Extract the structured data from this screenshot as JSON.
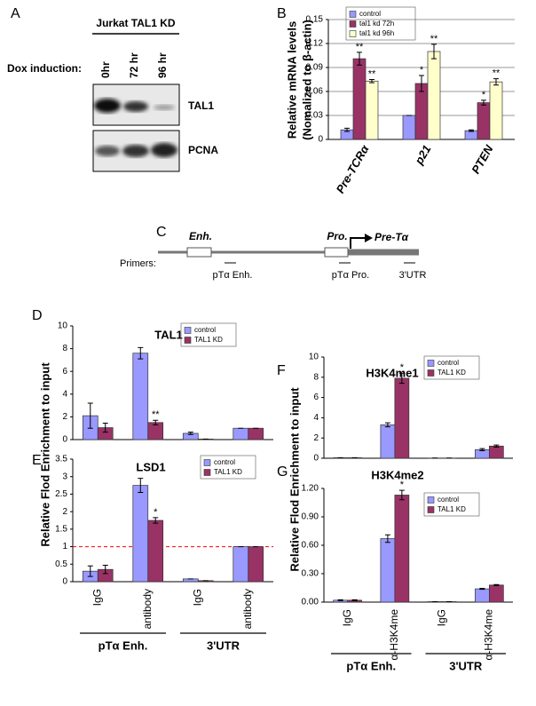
{
  "blot": {
    "label": "A",
    "title": "Jurkat TAL1 KD",
    "row_label": "Dox induction:",
    "lanes": [
      "0hr",
      "72 hr",
      "96 hr"
    ],
    "bands": [
      "TAL1",
      "PCNA"
    ]
  },
  "diagram": {
    "label": "C",
    "elements": [
      "Enh.",
      "Pro.",
      "Pre-Tα"
    ],
    "primers_label": "Primers:",
    "primers": [
      "pTα Enh.",
      "pTα Pro.",
      "3'UTR"
    ]
  },
  "chart_data": [
    {
      "type": "bar",
      "label": "B",
      "y_label": [
        "Relative mRNA levels",
        "(Nomalized to β-actin)"
      ],
      "categories": [
        "Pre-TCRα",
        "p21",
        "PTEN"
      ],
      "series": [
        {
          "name": "control",
          "color": "#9999ff",
          "values": [
            0.012,
            0.03,
            0.011
          ],
          "errors": [
            0.002,
            0,
            0.001
          ],
          "stars": [
            null,
            null,
            null
          ]
        },
        {
          "name": "tal1 kd 72h",
          "color": "#993366",
          "values": [
            0.101,
            0.07,
            0.046
          ],
          "errors": [
            0.008,
            0.01,
            0.003
          ],
          "stars": [
            "**",
            "*",
            "*"
          ]
        },
        {
          "name": "tal1 kd 96h",
          "color": "#ffffcc",
          "values": [
            0.073,
            0.11,
            0.072
          ],
          "errors": [
            0.002,
            0.009,
            0.004
          ],
          "stars": [
            "**",
            "**",
            "**"
          ]
        }
      ],
      "ylim": [
        0,
        0.15
      ],
      "yticks": [
        0,
        0.03,
        0.06,
        0.09,
        0.12,
        0.15
      ],
      "grid": true
    },
    {
      "type": "bar",
      "label": "D",
      "title": "TAL1",
      "y_label": "Relative Flod Enrichment to input",
      "series": [
        {
          "name": "control",
          "color": "#9999ff",
          "values": [
            2.1,
            7.6,
            0.55,
            1.0
          ],
          "errors": [
            1.1,
            0.5,
            0.1,
            0
          ],
          "stars": [
            null,
            null,
            null,
            null
          ]
        },
        {
          "name": "TAL1 KD",
          "color": "#993366",
          "values": [
            1.05,
            1.5,
            0.05,
            1.0
          ],
          "errors": [
            0.4,
            0.2,
            0,
            0
          ],
          "stars": [
            null,
            "**",
            null,
            null
          ]
        }
      ],
      "ylim": [
        0,
        10
      ],
      "yticks": [
        0,
        2,
        4,
        6,
        8,
        10
      ],
      "grid": false
    },
    {
      "type": "bar",
      "label": "E",
      "title": "LSD1",
      "categories": [
        "IgG",
        "antibody",
        "IgG",
        "antibody"
      ],
      "groups": [
        "pTα Enh.",
        "3'UTR"
      ],
      "series": [
        {
          "name": "control",
          "color": "#9999ff",
          "values": [
            0.3,
            2.75,
            0.08,
            1.0
          ],
          "errors": [
            0.15,
            0.2,
            0,
            0
          ],
          "stars": [
            null,
            null,
            null,
            null
          ]
        },
        {
          "name": "TAL1 KD",
          "color": "#993366",
          "values": [
            0.35,
            1.75,
            0.03,
            1.0
          ],
          "errors": [
            0.12,
            0.08,
            0,
            0
          ],
          "stars": [
            null,
            "*",
            null,
            null
          ]
        }
      ],
      "ylim": [
        0,
        3.5
      ],
      "yticks": [
        0,
        0.5,
        1,
        1.5,
        2,
        2.5,
        3,
        3.5
      ],
      "grid": false,
      "reference_line": {
        "value": 1,
        "color": "#ff0000"
      }
    },
    {
      "type": "bar",
      "label": "F",
      "title": "H3K4me1",
      "y_label": "Relative Flod Enrichment to input",
      "series": [
        {
          "name": "control",
          "color": "#9999ff",
          "values": [
            0.05,
            3.3,
            0.02,
            0.85
          ],
          "errors": [
            0,
            0.2,
            0,
            0.1
          ],
          "stars": [
            null,
            null,
            null,
            null
          ]
        },
        {
          "name": "TAL1 KD",
          "color": "#993366",
          "values": [
            0.05,
            7.9,
            0.02,
            1.2
          ],
          "errors": [
            0,
            0.5,
            0,
            0.1
          ],
          "stars": [
            null,
            "*",
            null,
            null
          ]
        }
      ],
      "ylim": [
        0,
        10
      ],
      "yticks": [
        0,
        2,
        4,
        6,
        8,
        10
      ],
      "grid": false
    },
    {
      "type": "bar",
      "label": "G",
      "title": "H3K4me2",
      "categories": [
        "IgG",
        "α-H3K4me",
        "IgG",
        "α-H3K4me"
      ],
      "groups": [
        "pTα Enh.",
        "3'UTR"
      ],
      "series": [
        {
          "name": "control",
          "color": "#9999ff",
          "values": [
            0.02,
            0.67,
            0.005,
            0.14
          ],
          "errors": [
            0.005,
            0.04,
            0,
            0.005
          ],
          "stars": [
            null,
            null,
            null,
            null
          ]
        },
        {
          "name": "TAL1 KD",
          "color": "#993366",
          "values": [
            0.02,
            1.13,
            0.005,
            0.18
          ],
          "errors": [
            0.005,
            0.05,
            0,
            0.005
          ],
          "stars": [
            null,
            "*",
            null,
            null
          ]
        }
      ],
      "ylim": [
        0,
        1.2
      ],
      "yticks": [
        {
          "value": 0,
          "label": "0.00"
        },
        {
          "value": 0.3,
          "label": "0.30"
        },
        {
          "value": 0.6,
          "label": "0.60"
        },
        {
          "value": 0.9,
          "label": "0.90"
        },
        {
          "value": 1.2,
          "label": "1.20"
        }
      ],
      "grid": false
    }
  ]
}
